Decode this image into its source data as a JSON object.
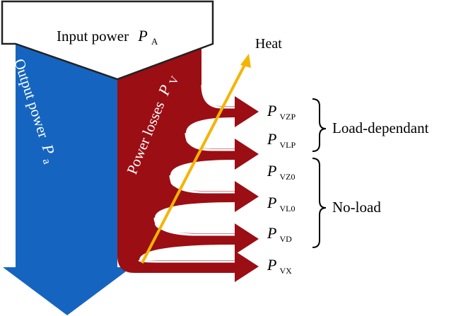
{
  "diagram": {
    "input": {
      "label": "Input power",
      "symbol": "P",
      "subscript": "A"
    },
    "output": {
      "label": "Output power",
      "symbol": "P",
      "subscript": "a"
    },
    "losses": {
      "label": "Power losses",
      "symbol": "P",
      "subscript": "V"
    },
    "heat": {
      "label": "Heat"
    },
    "loss_outputs": [
      {
        "symbol": "P",
        "subscript": "VZP"
      },
      {
        "symbol": "P",
        "subscript": "VLP"
      },
      {
        "symbol": "P",
        "subscript": "VZ0"
      },
      {
        "symbol": "P",
        "subscript": "VL0"
      },
      {
        "symbol": "P",
        "subscript": "VD"
      },
      {
        "symbol": "P",
        "subscript": "VX"
      }
    ],
    "groups": [
      {
        "label": "Load-dependant"
      },
      {
        "label": "No-load"
      }
    ],
    "colors": {
      "output_blue": "#1565c0",
      "loss_red": "#9b0e14",
      "heat_orange": "#f5b400",
      "outline": "#222222"
    }
  }
}
